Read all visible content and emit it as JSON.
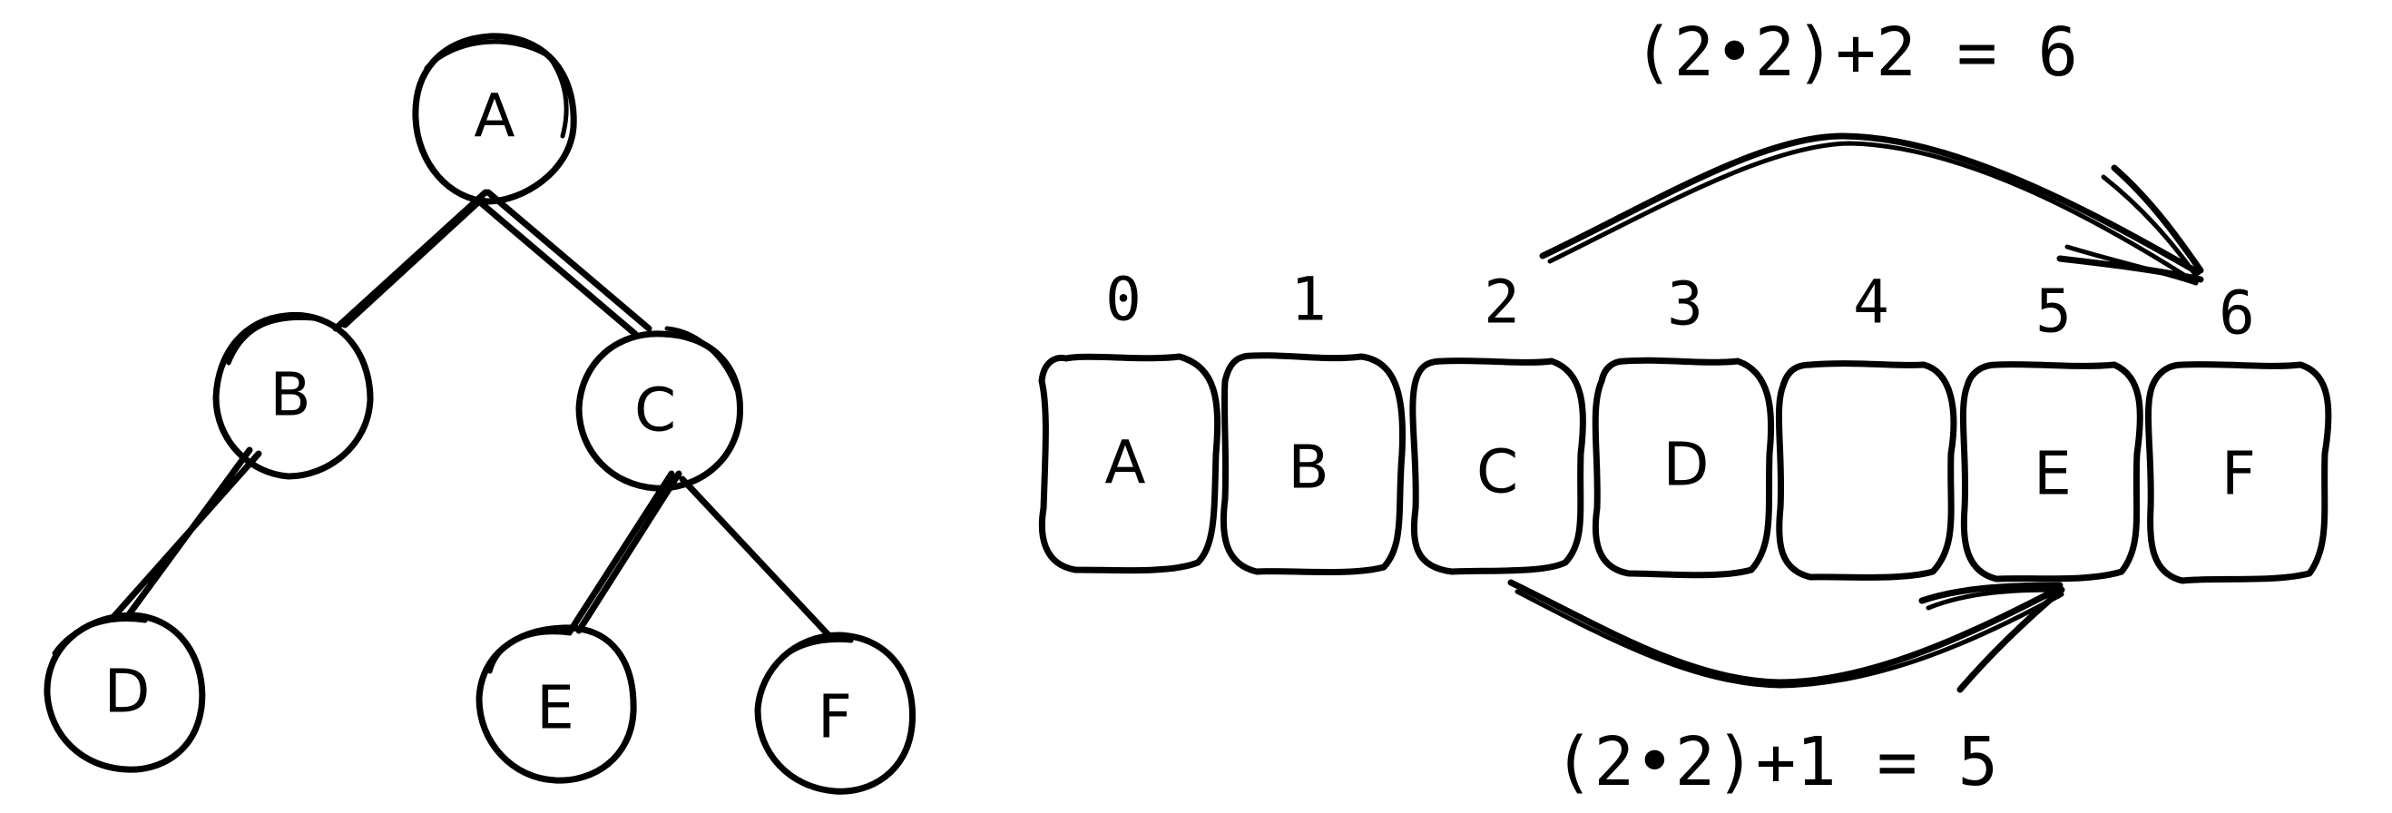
{
  "tree": {
    "nodes": [
      {
        "id": "A",
        "label": "A"
      },
      {
        "id": "B",
        "label": "B"
      },
      {
        "id": "C",
        "label": "C"
      },
      {
        "id": "D",
        "label": "D"
      },
      {
        "id": "E",
        "label": "E"
      },
      {
        "id": "F",
        "label": "F"
      }
    ],
    "edges": [
      [
        "A",
        "B"
      ],
      [
        "A",
        "C"
      ],
      [
        "B",
        "D"
      ],
      [
        "C",
        "E"
      ],
      [
        "C",
        "F"
      ]
    ]
  },
  "array": {
    "indices": [
      "0",
      "1",
      "2",
      "3",
      "4",
      "5",
      "6"
    ],
    "cells": [
      "A",
      "B",
      "C",
      "D",
      "",
      "E",
      "F"
    ]
  },
  "formulas": {
    "right_child": "(2•2)+2 = 6",
    "left_child": "(2•2)+1 = 5"
  }
}
